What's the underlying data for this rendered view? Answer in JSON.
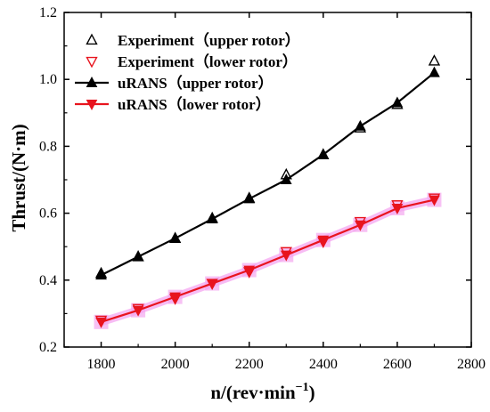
{
  "chart_data": {
    "type": "line",
    "xlabel": "n/(rev·min",
    "xlabel_sup": "−1",
    "xlabel_tail": ")",
    "ylabel": "Thrust/(N·m)",
    "xlim": [
      1700,
      2800
    ],
    "ylim": [
      0.2,
      1.2
    ],
    "x_ticks": [
      1800,
      2000,
      2200,
      2400,
      2600,
      2800
    ],
    "y_ticks": [
      "0.2",
      "0.4",
      "0.6",
      "0.8",
      "1.0",
      "1.2"
    ],
    "legend_position": "top-left",
    "colors": {
      "black": "#000000",
      "red": "#e8141e",
      "pink_shadow": "#f4a6f0"
    },
    "series": [
      {
        "name": "Experiment（upper rotor）",
        "style": "hollow-triangle-up",
        "color": "#000000",
        "x": [
          1800,
          1900,
          2000,
          2100,
          2200,
          2300,
          2400,
          2500,
          2600,
          2700
        ],
        "y": [
          0.42,
          0.47,
          0.525,
          0.585,
          0.645,
          0.715,
          0.775,
          0.855,
          0.925,
          1.055
        ]
      },
      {
        "name": "Experiment（lower rotor）",
        "style": "hollow-triangle-down",
        "color": "#e8141e",
        "x": [
          1800,
          1900,
          2000,
          2100,
          2200,
          2300,
          2400,
          2500,
          2600,
          2700
        ],
        "y": [
          0.28,
          0.315,
          0.345,
          0.39,
          0.425,
          0.485,
          0.515,
          0.575,
          0.625,
          0.645
        ]
      },
      {
        "name": "uRANS（upper rotor）",
        "style": "line-filled-triangle-up",
        "color": "#000000",
        "x": [
          1800,
          1900,
          2000,
          2100,
          2200,
          2300,
          2400,
          2500,
          2600,
          2700
        ],
        "y": [
          0.415,
          0.47,
          0.525,
          0.583,
          0.643,
          0.7,
          0.775,
          0.86,
          0.93,
          1.02
        ]
      },
      {
        "name": "uRANS（lower rotor）",
        "style": "line-filled-triangle-down",
        "color": "#e8141e",
        "x": [
          1800,
          1900,
          2000,
          2100,
          2200,
          2300,
          2400,
          2500,
          2600,
          2700
        ],
        "y": [
          0.275,
          0.31,
          0.35,
          0.39,
          0.43,
          0.475,
          0.52,
          0.565,
          0.615,
          0.64
        ]
      }
    ]
  }
}
